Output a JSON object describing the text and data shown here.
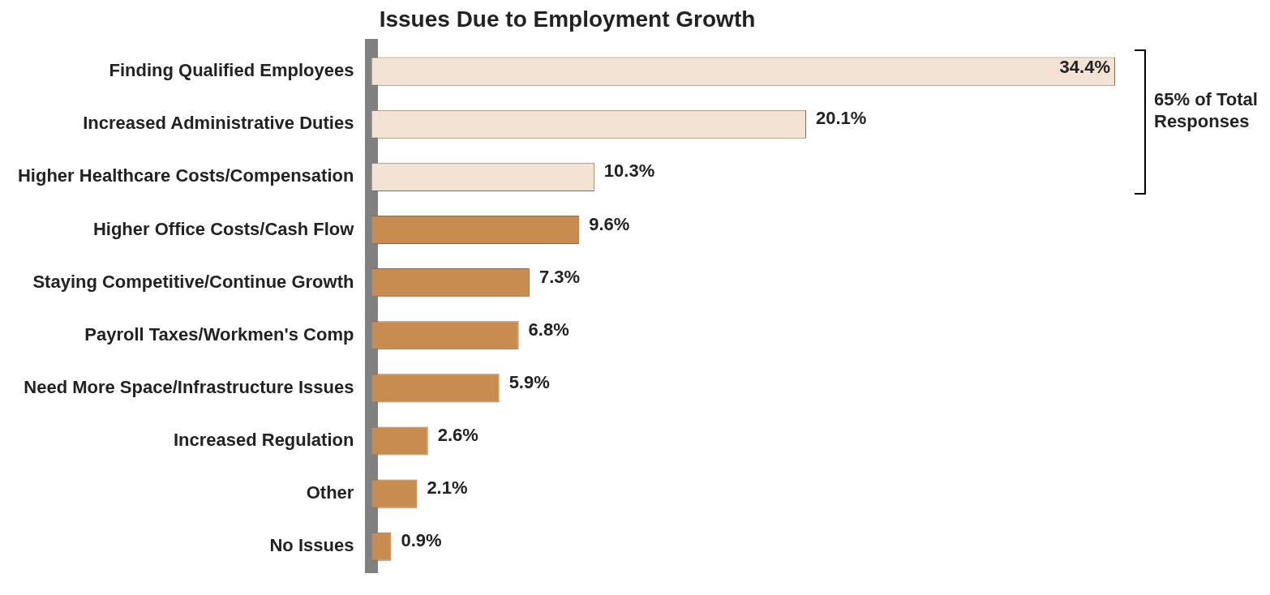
{
  "chart_data": {
    "type": "bar",
    "orientation": "horizontal",
    "title": "Issues Due to Employment Growth",
    "categories": [
      "Finding Qualified Employees",
      "Increased Administrative Duties",
      "Higher Healthcare Costs/Compensation",
      "Higher Office Costs/Cash Flow",
      "Staying Competitive/Continue Growth",
      "Payroll Taxes/Workmen's Comp",
      "Need More Space/Infrastructure Issues",
      "Increased Regulation",
      "Other",
      "No Issues"
    ],
    "values": [
      34.4,
      20.1,
      10.3,
      9.6,
      7.3,
      6.8,
      5.9,
      2.6,
      2.1,
      0.9
    ],
    "value_labels": [
      "34.4%",
      "20.1%",
      "10.3%",
      "9.6%",
      "7.3%",
      "6.8%",
      "5.9%",
      "2.6%",
      "2.1%",
      "0.9%"
    ],
    "colors": [
      "#f3e3d5",
      "#f3e3d5",
      "#f3e3d5",
      "#c88b50",
      "#c88b50",
      "#c88b50",
      "#c88b50",
      "#c88b50",
      "#c88b50",
      "#c88b50"
    ],
    "annotations": [
      "65% of Total Responses"
    ]
  }
}
